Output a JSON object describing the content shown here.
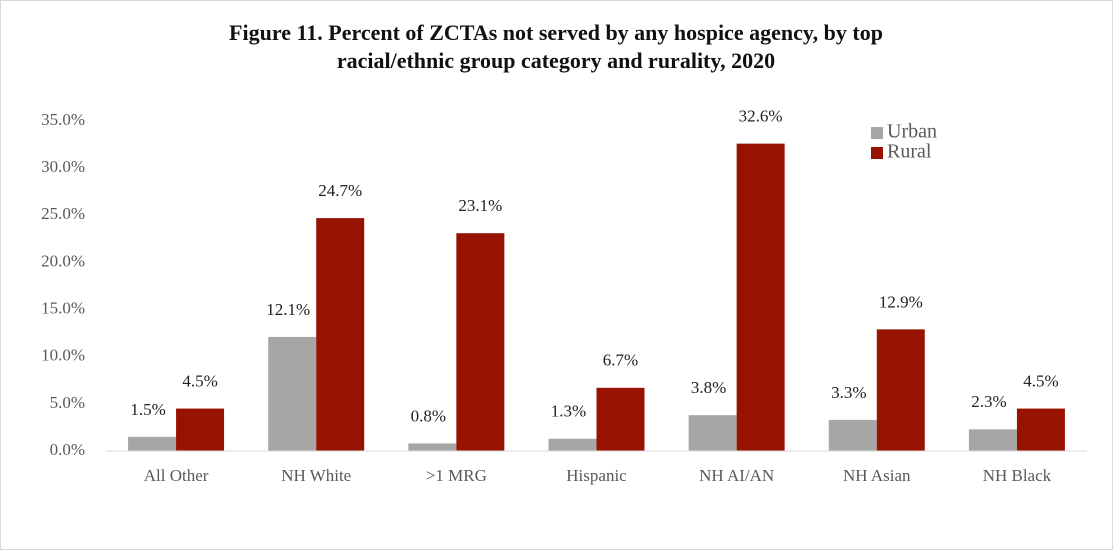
{
  "chart_data": {
    "type": "bar",
    "title": [
      "Figure 11.  Percent of ZCTAs not served by any hospice agency, by top",
      "racial/ethnic group category and rurality, 2020"
    ],
    "categories": [
      "All Other",
      "NH White",
      ">1 MRG",
      "Hispanic",
      "NH AI/AN",
      "NH Asian",
      "NH Black"
    ],
    "series": [
      {
        "name": "Urban",
        "color": "#a6a6a6",
        "values": [
          1.5,
          12.1,
          0.8,
          1.3,
          3.8,
          3.3,
          2.3
        ],
        "value_labels": [
          "1.5%",
          "12.1%",
          "0.8%",
          "1.3%",
          "3.8%",
          "3.3%",
          "2.3%"
        ]
      },
      {
        "name": "Rural",
        "color": "#981200",
        "values": [
          4.5,
          24.7,
          23.1,
          6.7,
          32.6,
          12.9,
          4.5
        ],
        "value_labels": [
          "4.5%",
          "24.7%",
          "23.1%",
          "6.7%",
          "32.6%",
          "12.9%",
          "4.5%"
        ]
      }
    ],
    "ylim": [
      0,
      35
    ],
    "yticks": [
      {
        "value": 0,
        "label": "0.0%"
      },
      {
        "value": 5,
        "label": "5.0%"
      },
      {
        "value": 10,
        "label": "10.0%"
      },
      {
        "value": 15,
        "label": "15.0%"
      },
      {
        "value": 20,
        "label": "20.0%"
      },
      {
        "value": 25,
        "label": "25.0%"
      },
      {
        "value": 30,
        "label": "30.0%"
      },
      {
        "value": 35,
        "label": "35.0%"
      }
    ],
    "grid": false,
    "legend": "top-right"
  }
}
